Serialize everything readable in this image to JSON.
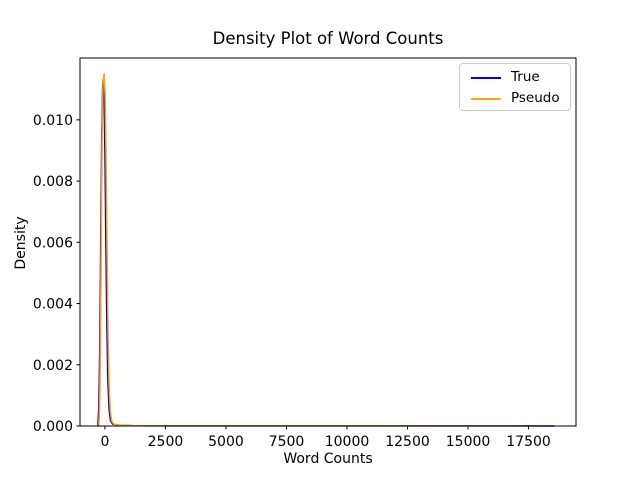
{
  "chart_data": {
    "type": "line",
    "title": "Density Plot of Word Counts",
    "xlabel": "Word Counts",
    "ylabel": "Density",
    "xlim": [
      -1030,
      19460
    ],
    "ylim": [
      0,
      0.01202
    ],
    "xticks": [
      0,
      2500,
      5000,
      7500,
      10000,
      12500,
      15000,
      17500
    ],
    "xtick_labels": [
      "0",
      "2500",
      "5000",
      "7500",
      "10000",
      "12500",
      "15000",
      "17500"
    ],
    "yticks": [
      0,
      0.002,
      0.004,
      0.006,
      0.008,
      0.01
    ],
    "ytick_labels": [
      "0.000",
      "0.002",
      "0.004",
      "0.006",
      "0.008",
      "0.010"
    ],
    "grid": false,
    "legend": {
      "position": "upper right"
    },
    "series": [
      {
        "name": "True",
        "color": "#0000ff",
        "points": [
          [
            -290,
            0
          ],
          [
            -250,
            0.0007
          ],
          [
            -210,
            0.0028
          ],
          [
            -170,
            0.0063
          ],
          [
            -130,
            0.0096
          ],
          [
            -95,
            0.0111
          ],
          [
            -70,
            0.01133
          ],
          [
            -40,
            0.0109
          ],
          [
            0,
            0.0089
          ],
          [
            40,
            0.0059
          ],
          [
            80,
            0.0032
          ],
          [
            120,
            0.0015
          ],
          [
            170,
            0.00055
          ],
          [
            230,
            0.00017
          ],
          [
            320,
            6e-05
          ],
          [
            600,
            2.5e-05
          ],
          [
            1200,
            1e-05
          ],
          [
            3000,
            6e-06
          ],
          [
            6000,
            4e-06
          ],
          [
            10000,
            3e-06
          ],
          [
            14000,
            3e-06
          ],
          [
            17000,
            3e-06
          ],
          [
            18000,
            2e-06
          ],
          [
            18550,
            1e-06
          ]
        ]
      },
      {
        "name": "Pseudo",
        "color": "#ffa500",
        "points": [
          [
            -250,
            0
          ],
          [
            -215,
            0.0008
          ],
          [
            -180,
            0.0031
          ],
          [
            -145,
            0.0067
          ],
          [
            -110,
            0.01
          ],
          [
            -75,
            0.0113
          ],
          [
            -30,
            0.0115
          ],
          [
            10,
            0.0108
          ],
          [
            50,
            0.0086
          ],
          [
            90,
            0.0056
          ],
          [
            130,
            0.003
          ],
          [
            170,
            0.0014
          ],
          [
            220,
            0.0005
          ],
          [
            280,
            0.00016
          ],
          [
            370,
            6e-05
          ],
          [
            650,
            2.5e-05
          ],
          [
            1300,
            1e-05
          ],
          [
            3000,
            6e-06
          ],
          [
            6000,
            4e-06
          ],
          [
            10000,
            3e-06
          ],
          [
            14000,
            2e-06
          ],
          [
            16500,
            2e-06
          ],
          [
            17280,
            1e-06
          ]
        ]
      }
    ]
  }
}
